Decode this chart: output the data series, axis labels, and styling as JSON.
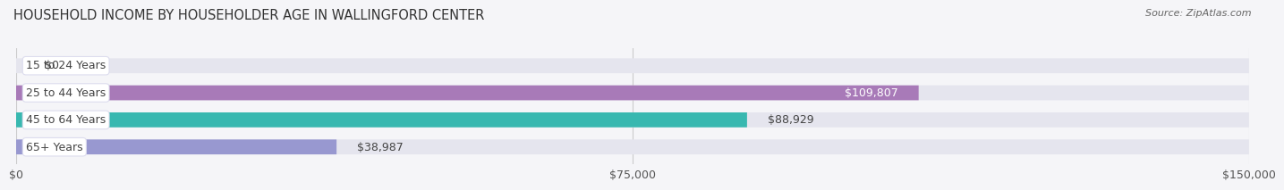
{
  "title": "HOUSEHOLD INCOME BY HOUSEHOLDER AGE IN WALLINGFORD CENTER",
  "source": "Source: ZipAtlas.com",
  "categories": [
    "15 to 24 Years",
    "25 to 44 Years",
    "45 to 64 Years",
    "65+ Years"
  ],
  "values": [
    0,
    109807,
    88929,
    38987
  ],
  "bar_colors": [
    "#a8b8d8",
    "#a87ab8",
    "#38b8b0",
    "#9898d0"
  ],
  "value_labels": [
    "$0",
    "$109,807",
    "$88,929",
    "$38,987"
  ],
  "value_inside": [
    false,
    true,
    false,
    false
  ],
  "xlim": [
    0,
    150000
  ],
  "xticks": [
    0,
    75000,
    150000
  ],
  "xtick_labels": [
    "$0",
    "$75,000",
    "$150,000"
  ],
  "background_color": "#f5f5f8",
  "bar_bg_color": "#e5e5ee",
  "bar_row_bg": "#ebebf2",
  "title_fontsize": 10.5,
  "source_fontsize": 8,
  "tick_fontsize": 9,
  "label_fontsize": 9,
  "value_fontsize": 9,
  "bar_height": 0.55
}
